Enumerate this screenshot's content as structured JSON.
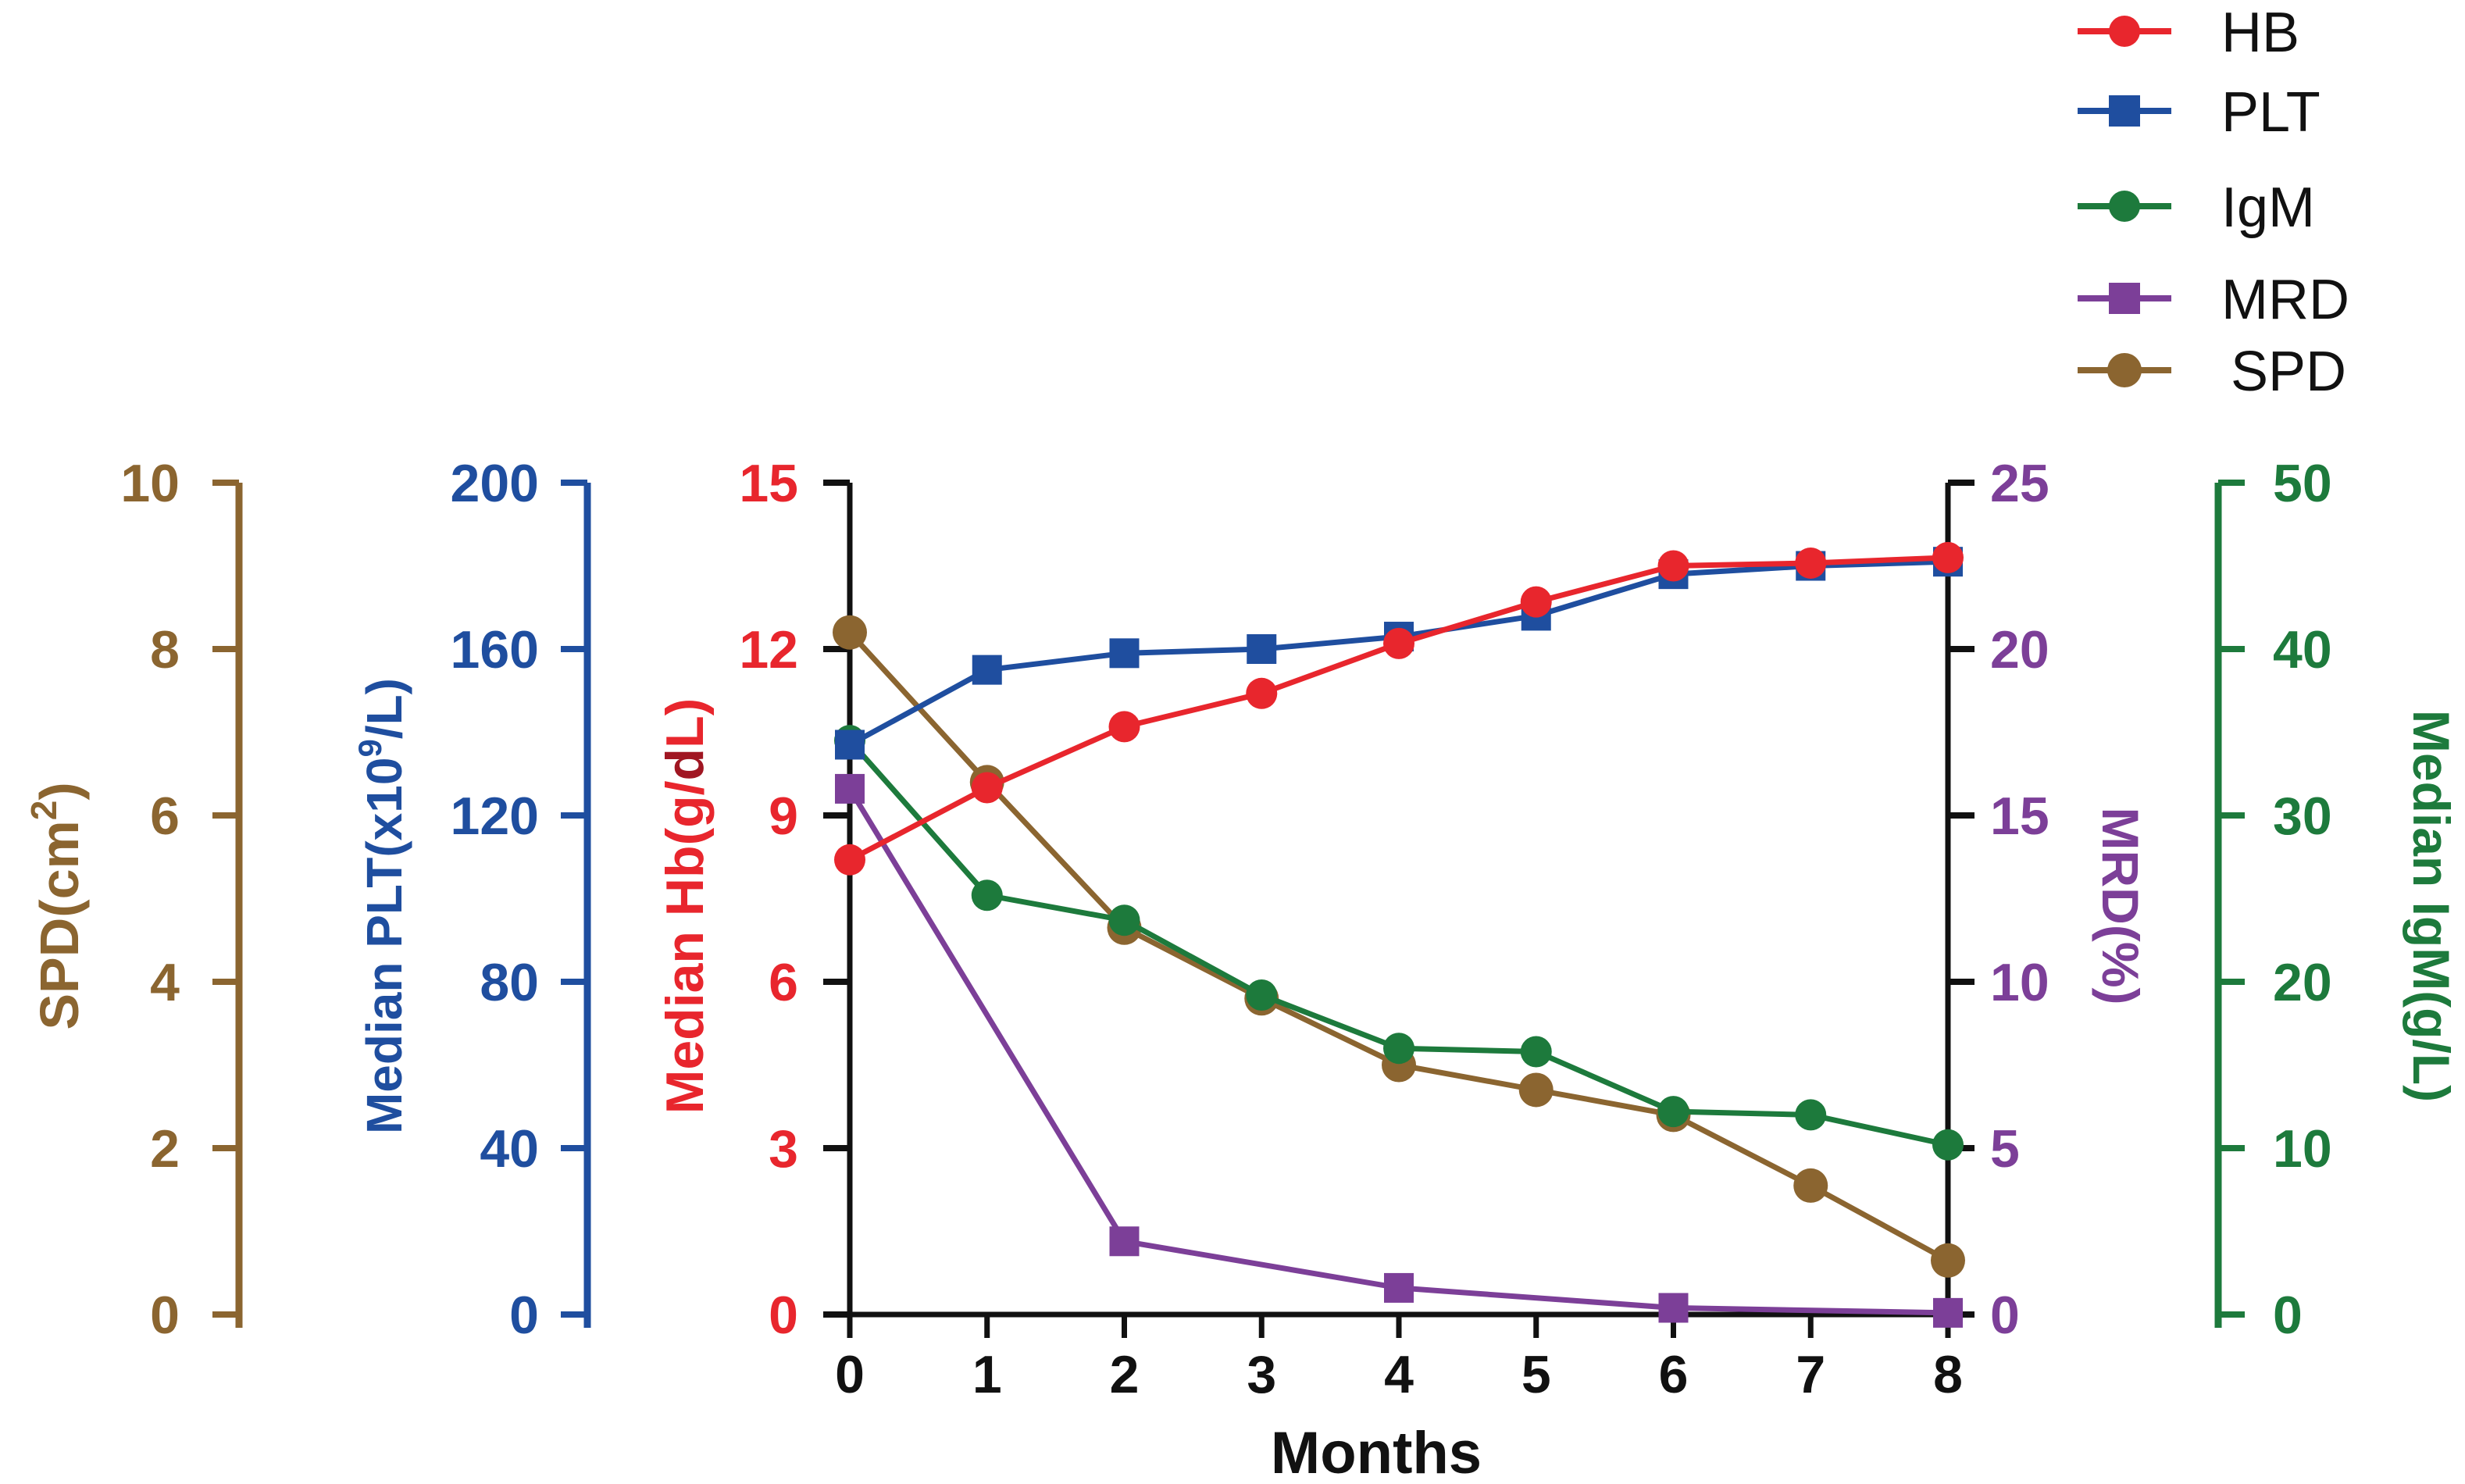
{
  "chart_data": {
    "type": "line",
    "xlabel": "Months",
    "x": [
      0,
      1,
      2,
      3,
      4,
      5,
      6,
      7,
      8
    ],
    "xlim": [
      0,
      8
    ],
    "series": [
      {
        "key": "hb",
        "name": "HB",
        "marker": "circle",
        "color": "#e8262d",
        "axis": "hb",
        "points": [
          [
            0,
            8.2
          ],
          [
            1,
            9.5
          ],
          [
            2,
            10.6
          ],
          [
            3,
            11.2
          ],
          [
            4,
            12.1
          ],
          [
            5,
            12.85
          ],
          [
            6,
            13.5
          ],
          [
            7,
            13.55
          ],
          [
            8,
            13.65
          ]
        ]
      },
      {
        "key": "plt",
        "name": "PLT",
        "marker": "square",
        "color": "#1f4e9f",
        "axis": "plt",
        "points": [
          [
            0,
            137
          ],
          [
            1,
            155
          ],
          [
            2,
            159
          ],
          [
            3,
            160
          ],
          [
            4,
            163
          ],
          [
            5,
            168
          ],
          [
            6,
            178
          ],
          [
            7,
            180
          ],
          [
            8,
            181
          ]
        ]
      },
      {
        "key": "igm",
        "name": "IgM",
        "marker": "circle",
        "color": "#1d7a3c",
        "axis": "igm",
        "points": [
          [
            0,
            34.5
          ],
          [
            1,
            25.2
          ],
          [
            2,
            23.7
          ],
          [
            3,
            19.2
          ],
          [
            4,
            16
          ],
          [
            5,
            15.8
          ],
          [
            6,
            12.2
          ],
          [
            7,
            12
          ],
          [
            8,
            10.2
          ]
        ]
      },
      {
        "key": "mrd",
        "name": "MRD",
        "marker": "square",
        "color": "#7c3f98",
        "axis": "mrd",
        "points": [
          [
            0,
            15.8
          ],
          [
            2,
            2.2
          ],
          [
            4,
            0.8
          ],
          [
            6,
            0.2
          ],
          [
            8,
            0.05
          ]
        ]
      },
      {
        "key": "spd",
        "name": "SPD",
        "marker": "circle",
        "color": "#8b6530",
        "axis": "spd",
        "points": [
          [
            0,
            8.2
          ],
          [
            1,
            6.4
          ],
          [
            2,
            4.65
          ],
          [
            3,
            3.8
          ],
          [
            4,
            3.0
          ],
          [
            5,
            2.7
          ],
          [
            6,
            2.4
          ],
          [
            7,
            1.55
          ],
          [
            8,
            0.65
          ]
        ]
      }
    ],
    "axes": {
      "spd": {
        "label": "SPD(cm",
        "label_sup": "2",
        "label_tail": ")",
        "color": "#8b6530",
        "range": [
          0,
          10
        ],
        "ticks": [
          "0",
          "2",
          "4",
          "6",
          "8",
          "10"
        ]
      },
      "plt": {
        "label": "Median PLT(x10",
        "label_sup": "9",
        "label_tail": "/L)",
        "color": "#1f4e9f",
        "range": [
          0,
          200
        ],
        "ticks": [
          "0",
          "40",
          "80",
          "120",
          "160",
          "200"
        ]
      },
      "hb": {
        "label": "Median Hb(g/",
        "label_dark": "d",
        "label_tail": "L)",
        "color": "#e8262d",
        "range": [
          0,
          15
        ],
        "ticks": [
          "0",
          "3",
          "6",
          "9",
          "12",
          "15"
        ]
      },
      "mrd": {
        "label": "MRD(%)",
        "color": "#7c3f98",
        "range": [
          0,
          25
        ],
        "ticks": [
          "0",
          "5",
          "10",
          "15",
          "20",
          "25"
        ]
      },
      "igm": {
        "label": "Median IgM(g/L)",
        "color": "#1d7a3c",
        "range": [
          0,
          50
        ],
        "ticks": [
          "0",
          "10",
          "20",
          "30",
          "40",
          "50"
        ]
      }
    },
    "x_ticks": [
      "0",
      "1",
      "2",
      "3",
      "4",
      "5",
      "6",
      "7",
      "8"
    ],
    "legend": [
      "HB",
      "PLT",
      "IgM",
      "MRD",
      "SPD"
    ],
    "legend_position": "top-right"
  }
}
